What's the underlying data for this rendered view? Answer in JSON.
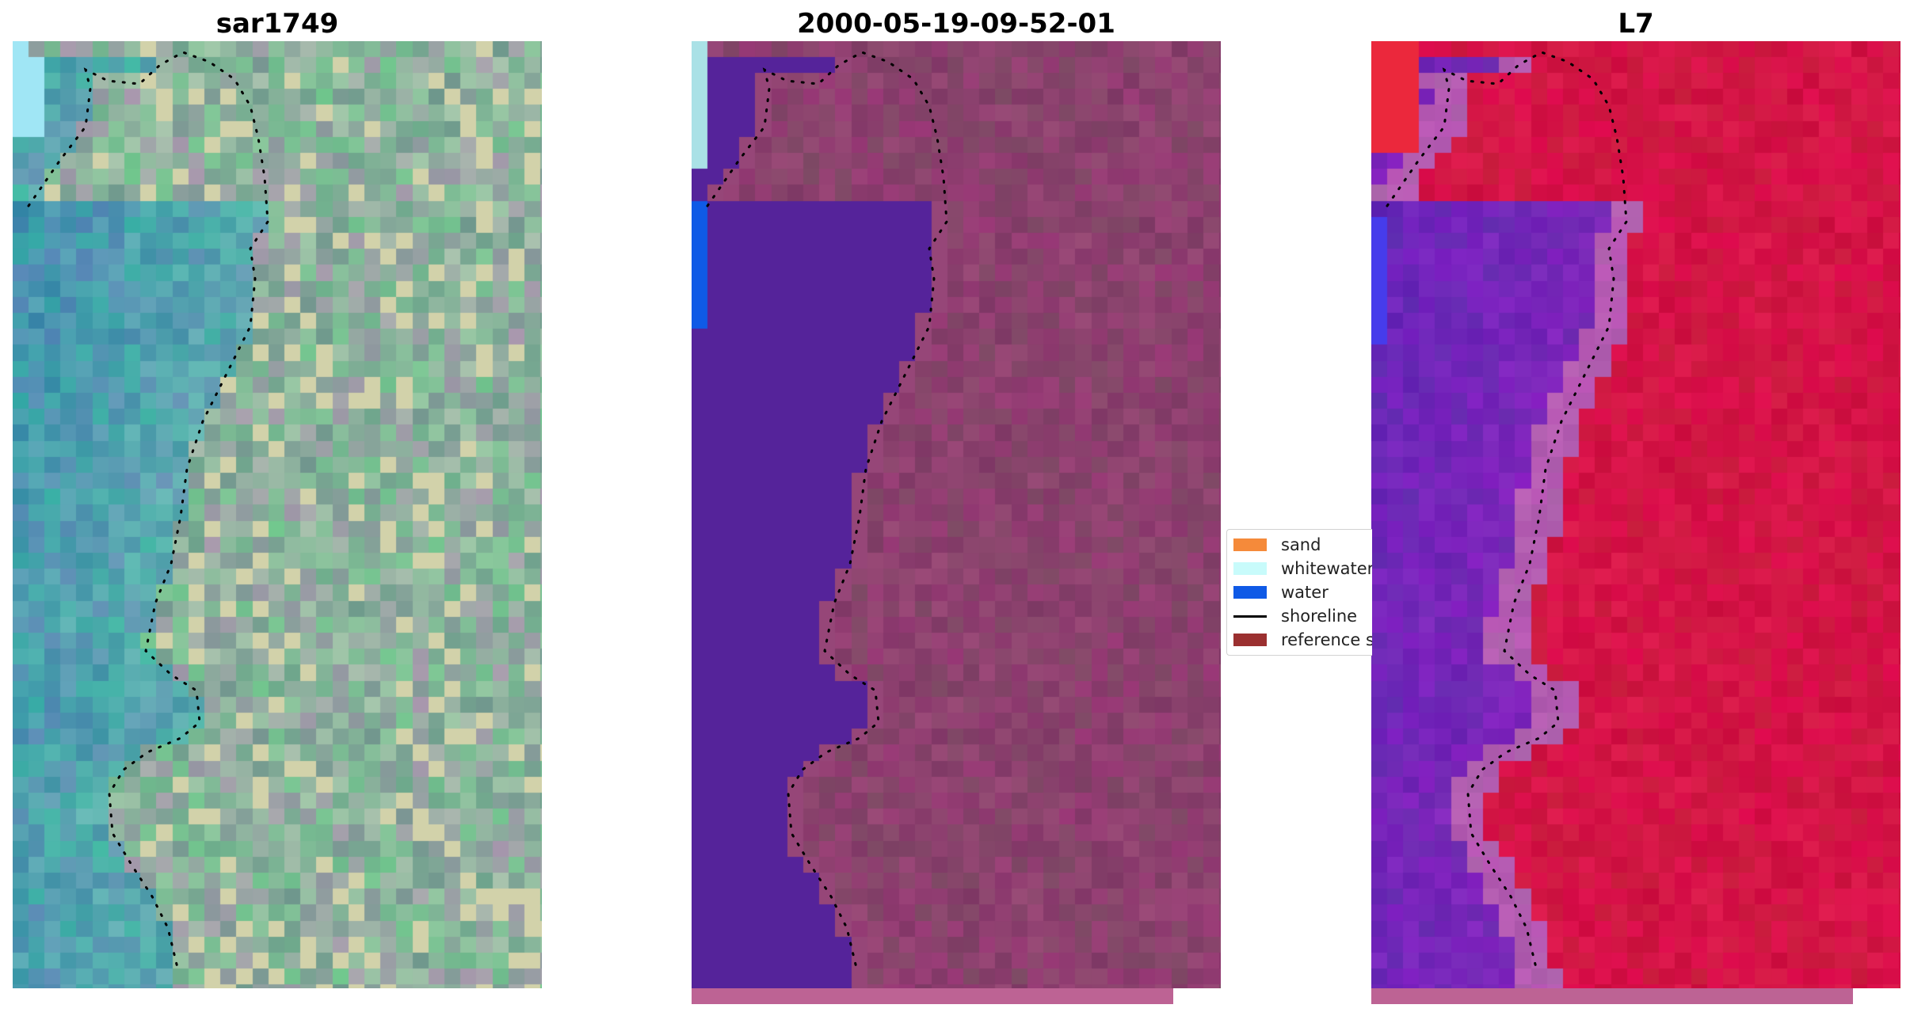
{
  "panels": [
    {
      "title": "sar1749",
      "style": "rgb"
    },
    {
      "title": "2000-05-19-09-52-01",
      "style": "classified"
    },
    {
      "title": "L7",
      "style": "index"
    }
  ],
  "legend": {
    "items": [
      {
        "label": "sand",
        "color": "#f58a3a",
        "kind": "patch"
      },
      {
        "label": "whitewater",
        "color": "#c8fbfb",
        "kind": "patch"
      },
      {
        "label": "water",
        "color": "#0f5ae6",
        "kind": "patch"
      },
      {
        "label": "shoreline",
        "color": "#000000",
        "kind": "line"
      },
      {
        "label": "reference shoreline buffer",
        "color": "#9b3030",
        "kind": "patch"
      }
    ]
  },
  "colors": {
    "water_class": "#55239a",
    "land_class": "#8b3f66",
    "bottom_bar": "#bd6394"
  }
}
